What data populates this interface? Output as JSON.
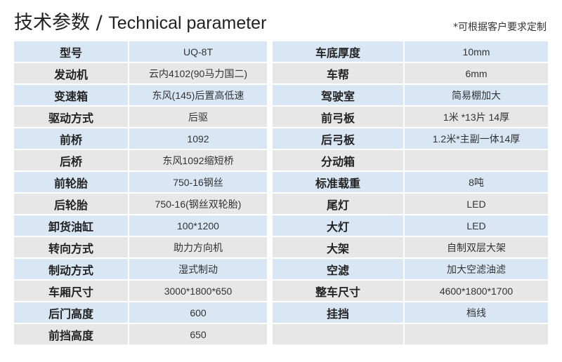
{
  "title": {
    "cn": "技术参数",
    "sep": "/",
    "en": "Technical parameter"
  },
  "note": "*可根据客户要求定制",
  "left": [
    {
      "k": "型号",
      "v": "UQ-8T"
    },
    {
      "k": "发动机",
      "v": "云内4102(90马力国二)"
    },
    {
      "k": "变速箱",
      "v": "东风(145)后置高低速"
    },
    {
      "k": "驱动方式",
      "v": "后驱"
    },
    {
      "k": "前桥",
      "v": "1092"
    },
    {
      "k": "后桥",
      "v": "东风1092缩短桥"
    },
    {
      "k": "前轮胎",
      "v": "750-16钢丝"
    },
    {
      "k": "后轮胎",
      "v": "750-16(钢丝双轮胎)"
    },
    {
      "k": "卸货油缸",
      "v": "100*1200"
    },
    {
      "k": "转向方式",
      "v": "助力方向机"
    },
    {
      "k": "制动方式",
      "v": "湿式制动"
    },
    {
      "k": "车厢尺寸",
      "v": "3000*1800*650"
    },
    {
      "k": "后门高度",
      "v": "600"
    },
    {
      "k": "前挡高度",
      "v": "650"
    }
  ],
  "right": [
    {
      "k": "车底厚度",
      "v": "10mm"
    },
    {
      "k": "车帮",
      "v": "6mm"
    },
    {
      "k": "驾驶室",
      "v": "简易棚加大"
    },
    {
      "k": "前弓板",
      "v": "1米 *13片 14厚"
    },
    {
      "k": "后弓板",
      "v": "1.2米*主副一体14厚"
    },
    {
      "k": "分动箱",
      "v": ""
    },
    {
      "k": "标准载重",
      "v": "8吨"
    },
    {
      "k": "尾灯",
      "v": "LED"
    },
    {
      "k": "大灯",
      "v": "LED"
    },
    {
      "k": "大架",
      "v": "自制双层大架"
    },
    {
      "k": "空滤",
      "v": "加大空滤油滤"
    },
    {
      "k": "整车尺寸",
      "v": "4600*1800*1700"
    },
    {
      "k": "挂挡",
      "v": "档线"
    },
    {
      "k": "",
      "v": ""
    }
  ]
}
